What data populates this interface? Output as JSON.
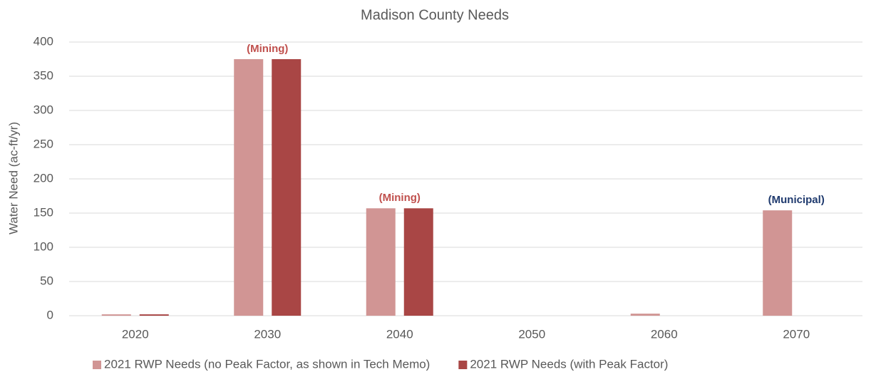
{
  "chart_data": {
    "type": "bar",
    "title": "Madison County Needs",
    "y_label": "Water Need (ac-ft/yr)",
    "categories": [
      "2020",
      "2030",
      "2040",
      "2050",
      "2060",
      "2070"
    ],
    "series": [
      {
        "name": "2021 RWP Needs (no Peak Factor, as shown in Tech Memo)",
        "color": "#d19594",
        "values": [
          2,
          375,
          157,
          0,
          3,
          154
        ]
      },
      {
        "name": "2021 RWP Needs (with Peak Factor)",
        "color": "#a94645",
        "values": [
          2,
          375,
          157,
          0,
          0,
          0
        ]
      }
    ],
    "annotations": [
      {
        "text": "(Mining)",
        "category": "2030",
        "color": "#c0504d"
      },
      {
        "text": "(Mining)",
        "category": "2040",
        "color": "#c0504d"
      },
      {
        "text": "(Municipal)",
        "category": "2070",
        "color": "#1f3a6e"
      }
    ],
    "ylim": [
      0,
      400
    ],
    "yticks": [
      0,
      50,
      100,
      150,
      200,
      250,
      300,
      350,
      400
    ],
    "grid": true,
    "legend": "bottom"
  }
}
